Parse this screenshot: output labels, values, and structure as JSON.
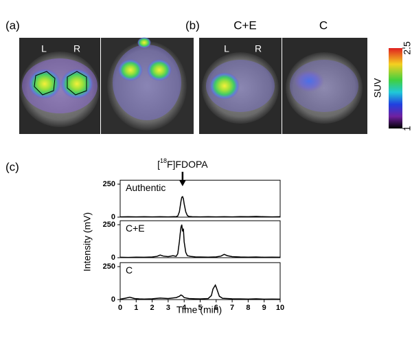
{
  "panels": {
    "a": {
      "label": "(a)",
      "left": "L",
      "right": "R"
    },
    "b": {
      "label": "(b)",
      "left": "L",
      "right": "R",
      "title_left": "C+E",
      "title_right": "C"
    },
    "c": {
      "label": "(c)"
    }
  },
  "colorbar": {
    "label": "SUV",
    "lim": [
      1,
      2.5
    ],
    "ticks": [
      1,
      2.5
    ]
  },
  "axis_labels": {
    "x": "Time (min)",
    "y": "Intensity (mV)"
  },
  "annotation": {
    "open": "[",
    "sup": "18",
    "rest": "F]FDOPA",
    "x": 3.9
  },
  "chart_data": [
    {
      "type": "line",
      "xlim": [
        0,
        10
      ],
      "ylim": [
        0,
        280
      ],
      "yticks": [
        0,
        250
      ],
      "x": [
        0,
        0.5,
        1,
        1.5,
        2,
        2.5,
        3,
        3.3,
        3.5,
        3.6,
        3.7,
        3.8,
        3.85,
        3.9,
        3.95,
        4.0,
        4.1,
        4.2,
        4.3,
        4.5,
        5,
        5.5,
        6,
        6.5,
        7,
        7.5,
        8,
        8.5,
        9,
        9.5,
        10
      ],
      "series": [
        {
          "name": "Authentic",
          "color": "#000000",
          "values": [
            2,
            3,
            2,
            3,
            2,
            3,
            2,
            3,
            4,
            8,
            40,
            120,
            150,
            155,
            140,
            100,
            40,
            12,
            5,
            3,
            2,
            3,
            2,
            3,
            2,
            4,
            3,
            5,
            3,
            2,
            3
          ]
        }
      ]
    },
    {
      "type": "line",
      "xlim": [
        0,
        10
      ],
      "ylim": [
        0,
        280
      ],
      "yticks": [
        0,
        250
      ],
      "x": [
        0,
        0.5,
        1,
        1.5,
        2,
        2.3,
        2.5,
        2.7,
        3,
        3.3,
        3.5,
        3.6,
        3.7,
        3.75,
        3.8,
        3.85,
        3.9,
        3.95,
        4.0,
        4.05,
        4.1,
        4.2,
        4.4,
        4.7,
        5,
        5.5,
        6,
        6.3,
        6.5,
        6.7,
        7,
        7.5,
        8,
        8.5,
        9,
        9.5,
        10
      ],
      "series": [
        {
          "name": "C+E",
          "color": "#000000",
          "values": [
            3,
            2,
            4,
            3,
            5,
            10,
            20,
            12,
            8,
            15,
            10,
            30,
            120,
            180,
            230,
            250,
            200,
            220,
            120,
            80,
            40,
            15,
            10,
            6,
            5,
            4,
            6,
            12,
            25,
            15,
            8,
            5,
            4,
            5,
            3,
            4,
            3
          ]
        }
      ]
    },
    {
      "type": "line",
      "xlim": [
        0,
        10
      ],
      "ylim": [
        0,
        280
      ],
      "yticks": [
        0,
        250
      ],
      "xticks": [
        0,
        1,
        2,
        3,
        4,
        5,
        6,
        7,
        8,
        9,
        10
      ],
      "x": [
        0,
        0.3,
        0.6,
        0.9,
        1.2,
        1.5,
        2,
        2.5,
        3,
        3.5,
        3.7,
        3.8,
        3.9,
        4.0,
        4.3,
        4.7,
        5,
        5.5,
        5.7,
        5.8,
        5.9,
        5.95,
        6.0,
        6.1,
        6.2,
        6.4,
        6.7,
        7,
        7.5,
        8,
        8.5,
        9,
        9.5,
        10
      ],
      "series": [
        {
          "name": "C",
          "color": "#000000",
          "values": [
            3,
            10,
            18,
            8,
            5,
            4,
            6,
            12,
            8,
            15,
            25,
            35,
            28,
            15,
            8,
            6,
            5,
            8,
            30,
            80,
            100,
            110,
            95,
            60,
            25,
            10,
            8,
            6,
            5,
            4,
            6,
            3,
            4,
            3
          ]
        }
      ]
    }
  ]
}
